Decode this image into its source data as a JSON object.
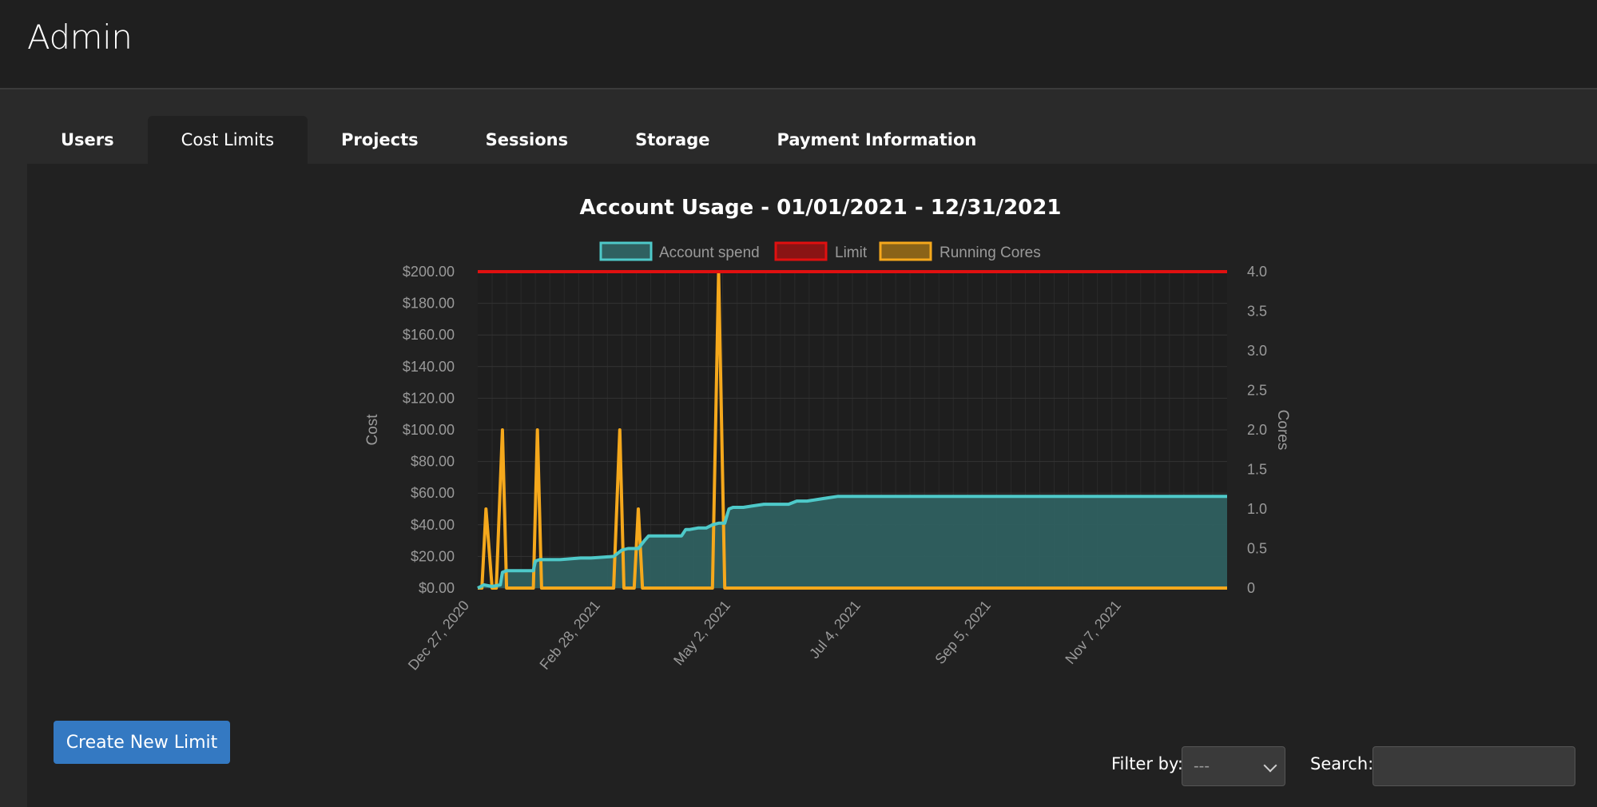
{
  "app": {
    "title": "Admin"
  },
  "tabs": [
    {
      "label": "Users",
      "active": false
    },
    {
      "label": "Cost Limits",
      "active": true
    },
    {
      "label": "Projects",
      "active": false
    },
    {
      "label": "Sessions",
      "active": false
    },
    {
      "label": "Storage",
      "active": false
    },
    {
      "label": "Payment Information",
      "active": false
    }
  ],
  "actions": {
    "create_label": "Create New Limit"
  },
  "filter": {
    "label": "Filter by:",
    "selected": "---"
  },
  "search": {
    "label": "Search:",
    "value": ""
  },
  "colors": {
    "spend_line": "#4ec9c9",
    "spend_fill": "#2f6060",
    "limit": "#e01010",
    "cores": "#f5a81c"
  },
  "chart_data": {
    "type": "line",
    "title": "Account Usage - 01/01/2021 - 12/31/2021",
    "ylabel": "Cost",
    "y2label": "Cores",
    "ylim": [
      0,
      200
    ],
    "y2lim": [
      0,
      4
    ],
    "y_ticks": [
      "$0.00",
      "$20.00",
      "$40.00",
      "$60.00",
      "$80.00",
      "$100.00",
      "$120.00",
      "$140.00",
      "$160.00",
      "$180.00",
      "$200.00"
    ],
    "y2_ticks": [
      "0",
      "0.5",
      "1.0",
      "1.5",
      "2.0",
      "2.5",
      "3.0",
      "3.5",
      "4.0"
    ],
    "x_ticks": [
      "Dec 27, 2020",
      "Feb 28, 2021",
      "May 2, 2021",
      "Jul 4, 2021",
      "Sep 5, 2021",
      "Nov 7, 2021"
    ],
    "xlim": [
      "2021-01-01",
      "2021-12-31"
    ],
    "legend_position": "top",
    "grid": true,
    "series": [
      {
        "name": "Account spend",
        "axis": "left",
        "fill": true,
        "x": [
          "2021-01-01",
          "2021-01-04",
          "2021-01-08",
          "2021-01-12",
          "2021-01-13",
          "2021-01-15",
          "2021-01-28",
          "2021-01-29",
          "2021-01-31",
          "2021-02-10",
          "2021-02-20",
          "2021-02-25",
          "2021-03-08",
          "2021-03-12",
          "2021-03-15",
          "2021-03-20",
          "2021-03-23",
          "2021-03-25",
          "2021-04-10",
          "2021-04-12",
          "2021-04-14",
          "2021-04-18",
          "2021-04-22",
          "2021-04-25",
          "2021-04-28",
          "2021-05-01",
          "2021-05-03",
          "2021-05-05",
          "2021-05-10",
          "2021-05-15",
          "2021-05-20",
          "2021-06-01",
          "2021-06-05",
          "2021-06-10",
          "2021-06-15",
          "2021-06-20",
          "2021-06-25",
          "2021-12-31"
        ],
        "values": [
          0,
          2,
          1,
          2,
          10,
          11,
          11,
          17,
          18,
          18,
          19,
          19,
          20,
          24,
          25,
          25,
          30,
          33,
          33,
          37,
          37,
          38,
          38,
          40,
          41,
          41,
          50,
          51,
          51,
          52,
          53,
          53,
          55,
          55,
          56,
          57,
          58,
          58
        ]
      },
      {
        "name": "Limit",
        "axis": "left",
        "x": [
          "2021-01-01",
          "2021-12-31"
        ],
        "values": [
          200,
          200
        ]
      },
      {
        "name": "Running Cores",
        "axis": "right",
        "x": [
          "2021-01-01",
          "2021-01-03",
          "2021-01-05",
          "2021-01-08",
          "2021-01-10",
          "2021-01-13",
          "2021-01-15",
          "2021-01-17",
          "2021-01-28",
          "2021-01-30",
          "2021-02-01",
          "2021-03-08",
          "2021-03-11",
          "2021-03-13",
          "2021-03-18",
          "2021-03-20",
          "2021-03-22",
          "2021-04-25",
          "2021-04-28",
          "2021-05-01",
          "2021-12-31"
        ],
        "values": [
          0,
          0,
          1.0,
          0,
          0,
          2.0,
          0,
          0,
          0,
          2.0,
          0,
          0,
          2.0,
          0,
          0,
          1.0,
          0,
          0,
          4.0,
          0,
          0
        ]
      }
    ]
  }
}
